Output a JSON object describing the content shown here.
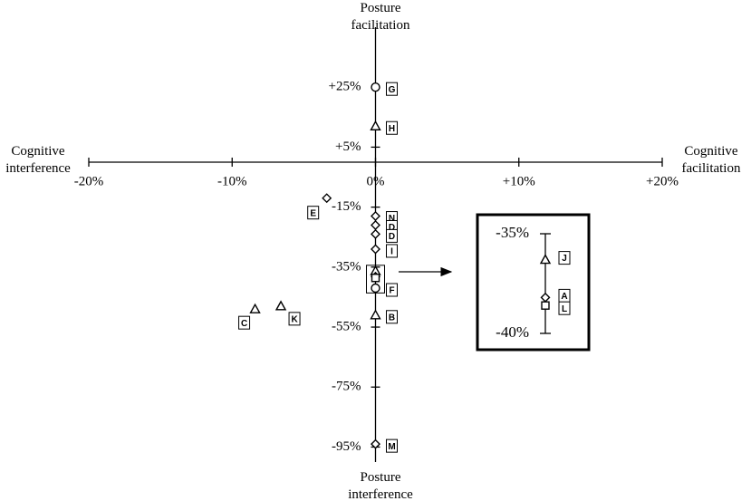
{
  "chart_data": {
    "type": "scatter",
    "x_label_left": "Cognitive interference",
    "x_label_right": "Cognitive facilitation",
    "y_label_top": "Posture facilitation",
    "y_label_bottom": "Posture interference",
    "xlim": [
      -20,
      20
    ],
    "ylim": [
      -100,
      45
    ],
    "xticks": [
      {
        "value": -20,
        "label": "-20%"
      },
      {
        "value": -10,
        "label": "-10%"
      },
      {
        "value": 0,
        "label": "0%"
      },
      {
        "value": 10,
        "label": "+10%"
      },
      {
        "value": 20,
        "label": "+20%"
      }
    ],
    "yticks": [
      {
        "value": 25,
        "label": "+25%"
      },
      {
        "value": 5,
        "label": "+5%"
      },
      {
        "value": -15,
        "label": "-15%"
      },
      {
        "value": -35,
        "label": "-35%"
      },
      {
        "value": -55,
        "label": "-55%"
      },
      {
        "value": -75,
        "label": "-75%"
      },
      {
        "value": -95,
        "label": "-95%"
      }
    ],
    "points": [
      {
        "label": "G",
        "x": 0,
        "y": 25,
        "marker": "circle"
      },
      {
        "label": "H",
        "x": 0,
        "y": 12,
        "marker": "triangle"
      },
      {
        "label": "E",
        "x": -3.4,
        "y": -12,
        "marker": "diamond"
      },
      {
        "label": "N",
        "x": 0,
        "y": -18,
        "marker": "diamond"
      },
      {
        "label": "D",
        "x": 0,
        "y": -21,
        "marker": "diamond"
      },
      {
        "label": "D",
        "x": 0,
        "y": -24,
        "marker": "diamond"
      },
      {
        "label": "I",
        "x": 0,
        "y": -29,
        "marker": "diamond"
      },
      {
        "label": "J",
        "x": 0,
        "y": -36.3,
        "marker": "triangle"
      },
      {
        "label": "A",
        "x": 0,
        "y": -38.2,
        "marker": "diamond"
      },
      {
        "label": "L",
        "x": 0,
        "y": -38.6,
        "marker": "square"
      },
      {
        "label": "F",
        "x": 0,
        "y": -42,
        "marker": "circle"
      },
      {
        "label": "B",
        "x": 0,
        "y": -51,
        "marker": "triangle"
      },
      {
        "label": "C",
        "x": -8.4,
        "y": -49,
        "marker": "triangle"
      },
      {
        "label": "K",
        "x": -6.6,
        "y": -48,
        "marker": "triangle"
      },
      {
        "label": "M",
        "x": 0,
        "y": -94,
        "marker": "diamond"
      }
    ],
    "inset": {
      "ylim": [
        -40,
        -35
      ],
      "yticks": [
        {
          "value": -35,
          "label": "-35%"
        },
        {
          "value": -40,
          "label": "-40%"
        }
      ]
    }
  }
}
